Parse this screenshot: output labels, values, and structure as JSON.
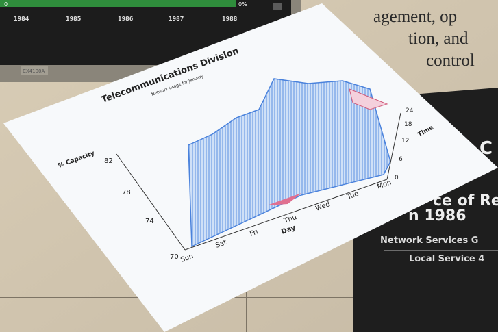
{
  "monitor": {
    "left_label": "0",
    "right_label": "0%",
    "years": [
      "1984",
      "1985",
      "1986",
      "1987",
      "1988"
    ],
    "model": "CX4100A"
  },
  "brochure_text": {
    "lines": [
      "agement, op",
      "tion, and",
      "control"
    ]
  },
  "paper_chart": {
    "title": "Telecommunications Division",
    "subtitle": "Network Usage for January",
    "z_label": "% Capacity",
    "z_ticks": [
      "70",
      "74",
      "78",
      "82"
    ],
    "x_label": "Day",
    "days": [
      "Sun",
      "Sat",
      "Fri",
      "Thu",
      "Wed",
      "Tue",
      "Mon"
    ],
    "y_label": "Time",
    "time_ticks": [
      "0",
      "6",
      "12",
      "18",
      "24"
    ]
  },
  "dark_panel": {
    "initial": "C",
    "heading": [
      "ce of Re",
      "n 1986"
    ],
    "lines": [
      "Network Services G",
      "Local Service 4"
    ]
  }
}
